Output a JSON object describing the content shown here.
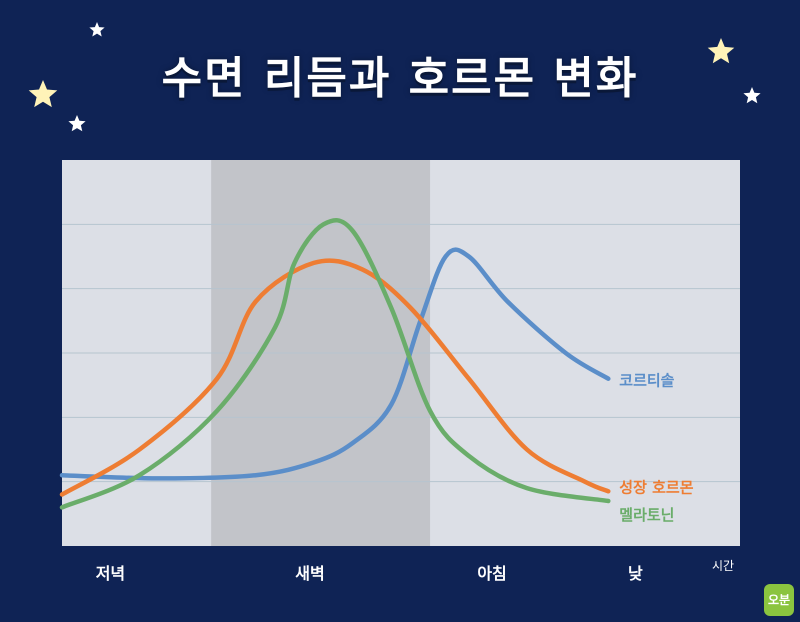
{
  "title": "수면 리듬과 호르몬 변화",
  "colors": {
    "background": "#0f2355",
    "plot_area": "#dcdfe6",
    "night_band": "#c2c4c9",
    "grid": "#b6c4cf",
    "cortisol": "#5b8ec9",
    "growth_hormone": "#ee7d33",
    "melatonin": "#6aad6a",
    "star": "#fff3b8"
  },
  "logo_text": "오분",
  "chart_data": {
    "type": "line",
    "title": "수면 리듬과 호르몬 변화",
    "xlabel": "시간",
    "ylabel": "",
    "categories": [
      "저녁",
      "새벽",
      "아침",
      "낮"
    ],
    "shaded_region": {
      "label": "새벽",
      "x_range": [
        0.77,
        1.9
      ]
    },
    "xlim": [
      0,
      3.5
    ],
    "ylim": [
      0,
      6
    ],
    "grid": true,
    "legend": "inline-right",
    "series": [
      {
        "name": "코르티솔",
        "color_key": "cortisol",
        "points": [
          [
            0.0,
            1.1
          ],
          [
            0.5,
            1.05
          ],
          [
            1.0,
            1.1
          ],
          [
            1.3,
            1.3
          ],
          [
            1.5,
            1.6
          ],
          [
            1.7,
            2.2
          ],
          [
            1.85,
            3.5
          ],
          [
            1.98,
            4.5
          ],
          [
            2.1,
            4.5
          ],
          [
            2.3,
            3.8
          ],
          [
            2.6,
            3.0
          ],
          [
            2.82,
            2.6
          ]
        ]
      },
      {
        "name": "성장 호르몬",
        "color_key": "growth_hormone",
        "points": [
          [
            0.0,
            0.8
          ],
          [
            0.4,
            1.5
          ],
          [
            0.8,
            2.6
          ],
          [
            1.0,
            3.8
          ],
          [
            1.3,
            4.4
          ],
          [
            1.55,
            4.3
          ],
          [
            1.8,
            3.7
          ],
          [
            2.1,
            2.6
          ],
          [
            2.4,
            1.5
          ],
          [
            2.7,
            1.0
          ],
          [
            2.82,
            0.85
          ]
        ]
      },
      {
        "name": "멜라토닌",
        "color_key": "melatonin",
        "points": [
          [
            0.0,
            0.6
          ],
          [
            0.4,
            1.1
          ],
          [
            0.8,
            2.1
          ],
          [
            1.1,
            3.4
          ],
          [
            1.2,
            4.4
          ],
          [
            1.35,
            5.0
          ],
          [
            1.5,
            4.9
          ],
          [
            1.7,
            3.7
          ],
          [
            1.9,
            2.1
          ],
          [
            2.1,
            1.4
          ],
          [
            2.4,
            0.9
          ],
          [
            2.82,
            0.7
          ]
        ]
      }
    ]
  }
}
